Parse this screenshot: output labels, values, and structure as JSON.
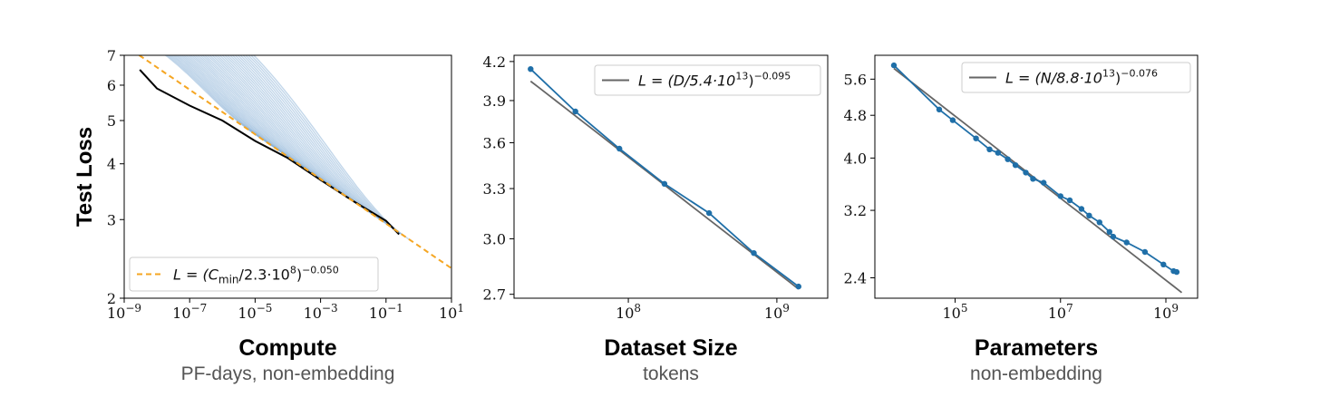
{
  "chart_data": [
    {
      "type": "line",
      "ylabel": "Test Loss",
      "xlabel": "Compute",
      "xsublabel": "PF-days, non-embedding",
      "xscale": "log",
      "yscale": "log",
      "xlim": [
        1e-09,
        10
      ],
      "ylim": [
        2,
        7
      ],
      "xticks": [
        {
          "v": 1e-09,
          "e": "−9"
        },
        {
          "v": 1e-07,
          "e": "−7"
        },
        {
          "v": 1e-05,
          "e": "−5"
        },
        {
          "v": 0.001,
          "e": "−3"
        },
        {
          "v": 0.1,
          "e": "−1"
        },
        {
          "v": 10,
          "e": "1"
        }
      ],
      "yticks": [
        {
          "v": 2,
          "l": "2"
        },
        {
          "v": 3,
          "l": "3"
        },
        {
          "v": 4,
          "l": "4"
        },
        {
          "v": 5,
          "l": "5"
        },
        {
          "v": 6,
          "l": "6"
        },
        {
          "v": 7,
          "l": "7"
        }
      ],
      "fit": {
        "label_prefix": "L = (C",
        "label_sub": "min",
        "label_mid": "/2.3·10",
        "label_exp1": "8",
        "label_close": ")",
        "label_exp2": "−0.050",
        "scale": 230000000.0,
        "exponent": -0.05,
        "color": "#f5a623"
      },
      "frontier": {
        "color": "#000000",
        "x": [
          3e-09,
          1e-08,
          1e-07,
          1e-06,
          1e-05,
          0.0001,
          0.001,
          0.01,
          0.1,
          0.25
        ],
        "y": [
          6.5,
          5.9,
          5.4,
          5.0,
          4.5,
          4.12,
          3.68,
          3.3,
          2.98,
          2.78
        ]
      },
      "curves_color": "#7aa6d1",
      "curves": {
        "count": 38,
        "x_end_min": 1e-05,
        "x_end_max": 0.5
      },
      "legend_position": "lower-left"
    },
    {
      "type": "line",
      "xlabel": "Dataset Size",
      "xsublabel": "tokens",
      "xscale": "log",
      "yscale": "log",
      "xlim": [
        17000000.0,
        2200000000.0
      ],
      "ylim": [
        2.68,
        4.25
      ],
      "xticks": [
        {
          "v": 100000000.0,
          "e": "8"
        },
        {
          "v": 1000000000.0,
          "e": "9"
        }
      ],
      "yticks": [
        {
          "v": 2.7,
          "l": "2.7"
        },
        {
          "v": 3.0,
          "l": "3.0"
        },
        {
          "v": 3.3,
          "l": "3.3"
        },
        {
          "v": 3.6,
          "l": "3.6"
        },
        {
          "v": 3.9,
          "l": "3.9"
        },
        {
          "v": 4.2,
          "l": "4.2"
        }
      ],
      "series": [
        {
          "x": [
            22000000.0,
            44000000.0,
            87000000.0,
            175000000.0,
            350000000.0,
            700000000.0,
            1400000000.0
          ],
          "y": [
            4.14,
            3.82,
            3.56,
            3.33,
            3.15,
            2.92,
            2.74
          ],
          "color": "#1f6fa8"
        }
      ],
      "fit": {
        "label_prefix": "L = (D/5.4·10",
        "label_exp1": "13",
        "label_close": ")",
        "label_exp2": "−0.095",
        "scale": 54000000000000.0,
        "exponent": -0.095,
        "x_range": [
          22000000.0,
          1400000000.0
        ],
        "color": "#666666"
      },
      "legend_position": "upper-right"
    },
    {
      "type": "line",
      "xlabel": "Parameters",
      "xsublabel": "non-embedding",
      "xscale": "log",
      "yscale": "log",
      "xlim": [
        3000.0,
        4000000000.0
      ],
      "ylim": [
        2.2,
        6.2
      ],
      "xticks": [
        {
          "v": 100000.0,
          "e": "5"
        },
        {
          "v": 10000000.0,
          "e": "7"
        },
        {
          "v": 1000000000.0,
          "e": "9"
        }
      ],
      "yticks": [
        {
          "v": 2.4,
          "l": "2.4"
        },
        {
          "v": 3.2,
          "l": "3.2"
        },
        {
          "v": 4.0,
          "l": "4.0"
        },
        {
          "v": 4.8,
          "l": "4.8"
        },
        {
          "v": 5.6,
          "l": "5.6"
        }
      ],
      "series": [
        {
          "x": [
            6900.0,
            50000.0,
            90000.0,
            250000.0,
            450000.0,
            650000.0,
            1000000.0,
            1400000.0,
            2200000.0,
            3000000.0,
            4800000.0,
            10000000.0,
            15000000.0,
            25000000.0,
            35000000.0,
            55000000.0,
            85000000.0,
            100000000.0,
            180000000.0,
            400000000.0,
            900000000.0,
            1400000000.0,
            1600000000.0
          ],
          "y": [
            5.94,
            4.92,
            4.7,
            4.35,
            4.15,
            4.09,
            3.98,
            3.88,
            3.76,
            3.66,
            3.6,
            3.4,
            3.34,
            3.22,
            3.13,
            3.04,
            2.92,
            2.86,
            2.79,
            2.68,
            2.54,
            2.47,
            2.46
          ],
          "color": "#1f6fa8"
        }
      ],
      "fit": {
        "label_prefix": "L = (N/8.8·10",
        "label_exp1": "13",
        "label_close": ")",
        "label_exp2": "−0.076",
        "scale": 88000000000000.0,
        "exponent": -0.076,
        "x_range": [
          6900.0,
          2000000000.0
        ],
        "color": "#666666"
      },
      "legend_position": "upper-right"
    }
  ]
}
